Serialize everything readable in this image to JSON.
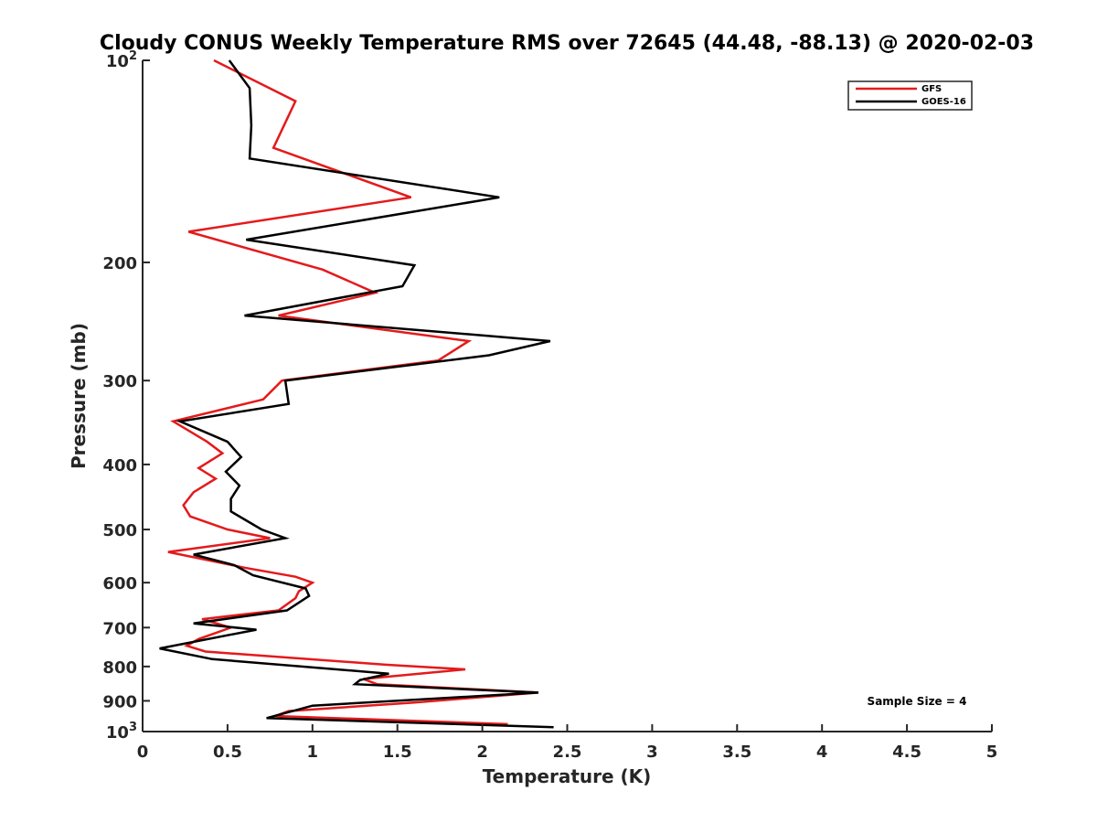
{
  "chart_data": {
    "type": "line",
    "title": "Cloudy CONUS Weekly Temperature RMS over 72645 (44.48, -88.13) @ 2020-02-03",
    "xlabel": "Temperature (K)",
    "ylabel": "Pressure (mb)",
    "xlim": [
      0,
      5
    ],
    "ylim": [
      1000,
      100
    ],
    "yscale": "log",
    "y_reversed": true,
    "grid": false,
    "legend_position": "top-right",
    "annotation": "Sample Size = 4",
    "x_ticks": [
      {
        "value": 0,
        "label": "0"
      },
      {
        "value": 0.5,
        "label": "0.5"
      },
      {
        "value": 1,
        "label": "1"
      },
      {
        "value": 1.5,
        "label": "1.5"
      },
      {
        "value": 2,
        "label": "2"
      },
      {
        "value": 2.5,
        "label": "2.5"
      },
      {
        "value": 3,
        "label": "3"
      },
      {
        "value": 3.5,
        "label": "3.5"
      },
      {
        "value": 4,
        "label": "4"
      },
      {
        "value": 4.5,
        "label": "4.5"
      },
      {
        "value": 5,
        "label": "5"
      }
    ],
    "y_ticks": [
      {
        "value": 100,
        "base": "10",
        "exp": "2"
      },
      {
        "value": 200,
        "label": "200"
      },
      {
        "value": 300,
        "label": "300"
      },
      {
        "value": 400,
        "label": "400"
      },
      {
        "value": 500,
        "label": "500"
      },
      {
        "value": 600,
        "label": "600"
      },
      {
        "value": 700,
        "label": "700"
      },
      {
        "value": 800,
        "label": "800"
      },
      {
        "value": 900,
        "label": "900"
      },
      {
        "value": 1000,
        "base": "10",
        "exp": "3"
      }
    ],
    "series": [
      {
        "name": "GFS",
        "color": "#e41a1c",
        "points": [
          [
            0.42,
            100
          ],
          [
            0.9,
            115
          ],
          [
            0.77,
            135
          ],
          [
            1.58,
            160
          ],
          [
            0.27,
            180
          ],
          [
            1.06,
            205
          ],
          [
            1.37,
            222
          ],
          [
            0.8,
            240
          ],
          [
            1.92,
            262
          ],
          [
            1.74,
            280
          ],
          [
            0.82,
            300
          ],
          [
            0.71,
            320
          ],
          [
            0.18,
            345
          ],
          [
            0.38,
            370
          ],
          [
            0.47,
            385
          ],
          [
            0.33,
            405
          ],
          [
            0.43,
            420
          ],
          [
            0.3,
            440
          ],
          [
            0.24,
            460
          ],
          [
            0.28,
            478
          ],
          [
            0.5,
            500
          ],
          [
            0.75,
            515
          ],
          [
            0.15,
            540
          ],
          [
            0.6,
            570
          ],
          [
            0.9,
            588
          ],
          [
            1.0,
            600
          ],
          [
            0.92,
            618
          ],
          [
            0.9,
            633
          ],
          [
            0.8,
            660
          ],
          [
            0.35,
            680
          ],
          [
            0.52,
            700
          ],
          [
            0.33,
            728
          ],
          [
            0.26,
            745
          ],
          [
            0.37,
            760
          ],
          [
            1.43,
            795
          ],
          [
            1.9,
            808
          ],
          [
            1.3,
            835
          ],
          [
            1.38,
            850
          ],
          [
            2.33,
            875
          ],
          [
            1.6,
            905
          ],
          [
            0.86,
            932
          ],
          [
            0.78,
            948
          ],
          [
            2.15,
            975
          ]
        ]
      },
      {
        "name": "GOES-16",
        "color": "#000000",
        "points": [
          [
            0.51,
            100
          ],
          [
            0.63,
            110
          ],
          [
            0.64,
            125
          ],
          [
            0.63,
            140
          ],
          [
            2.1,
            160
          ],
          [
            0.61,
            185
          ],
          [
            1.6,
            202
          ],
          [
            1.53,
            217
          ],
          [
            0.6,
            240
          ],
          [
            2.4,
            262
          ],
          [
            2.04,
            275
          ],
          [
            0.84,
            300
          ],
          [
            0.86,
            325
          ],
          [
            0.22,
            345
          ],
          [
            0.5,
            370
          ],
          [
            0.58,
            390
          ],
          [
            0.49,
            410
          ],
          [
            0.57,
            430
          ],
          [
            0.52,
            450
          ],
          [
            0.52,
            470
          ],
          [
            0.7,
            500
          ],
          [
            0.84,
            515
          ],
          [
            0.3,
            545
          ],
          [
            0.54,
            565
          ],
          [
            0.65,
            585
          ],
          [
            0.96,
            612
          ],
          [
            0.98,
            628
          ],
          [
            0.85,
            660
          ],
          [
            0.3,
            690
          ],
          [
            0.67,
            705
          ],
          [
            0.1,
            752
          ],
          [
            0.41,
            780
          ],
          [
            1.45,
            820
          ],
          [
            1.28,
            838
          ],
          [
            1.25,
            850
          ],
          [
            2.33,
            875
          ],
          [
            1.0,
            915
          ],
          [
            0.73,
            955
          ],
          [
            2.42,
            985
          ]
        ]
      }
    ]
  }
}
